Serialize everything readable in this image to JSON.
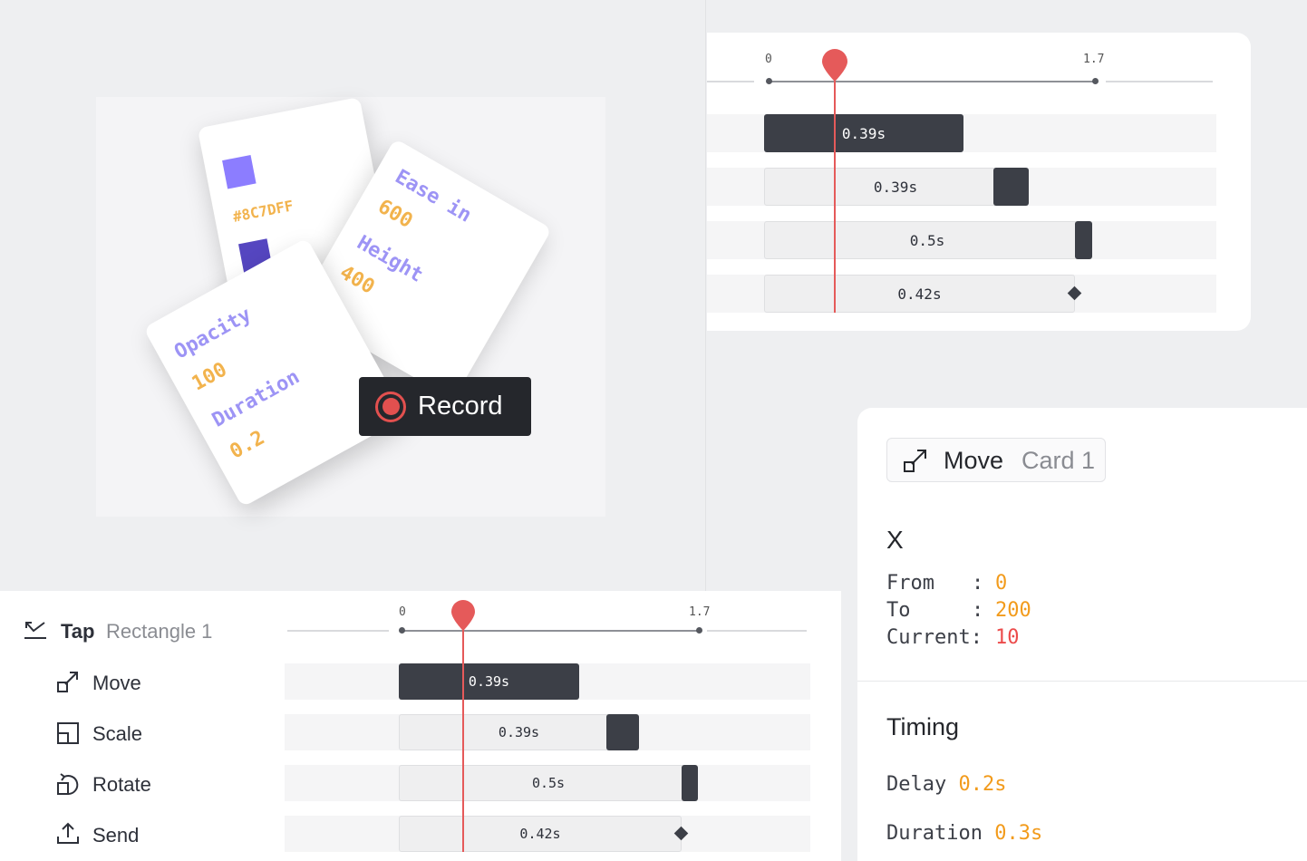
{
  "scene": {
    "card_color": {
      "swatch_light": "#8C7DFF",
      "swatch_dark": "#5546C0",
      "hex_label": "#8C7DFF"
    },
    "card_ease": {
      "ease_label": "Ease in",
      "ease_value": "600",
      "height_label": "Height",
      "height_value": "400"
    },
    "card_opacity": {
      "opacity_label": "Opacity",
      "opacity_value": "100",
      "duration_label": "Duration",
      "duration_value": "0.2"
    },
    "record_button": {
      "label": "Record",
      "accent": "#e2504f"
    }
  },
  "top_timeline": {
    "tick_start": "0",
    "tick_end": "1.7",
    "playhead_color": "#e55a5a",
    "rows": [
      {
        "value": "0.39s",
        "style": "solid"
      },
      {
        "value": "0.39s",
        "style": "track-square-knob"
      },
      {
        "value": "0.5s",
        "style": "track-thin-knob"
      },
      {
        "value": "0.42s",
        "style": "track-diamond"
      }
    ]
  },
  "bottom_panel": {
    "trigger": {
      "icon": "tap-icon",
      "label": "Tap",
      "target": "Rectangle 1"
    },
    "tick_start": "0",
    "tick_end": "1.7",
    "rows": [
      {
        "icon": "move-icon",
        "label": "Move",
        "value": "0.39s"
      },
      {
        "icon": "scale-icon",
        "label": "Scale",
        "value": "0.39s"
      },
      {
        "icon": "rotate-icon",
        "label": "Rotate",
        "value": "0.5s"
      },
      {
        "icon": "send-icon",
        "label": "Send",
        "value": "0.42s"
      }
    ]
  },
  "inspector": {
    "chip": {
      "icon": "move-icon",
      "action": "Move",
      "target": "Card 1"
    },
    "property": "X",
    "from_label": "From",
    "from_sep": ":",
    "from_value": "0",
    "to_label": "To",
    "to_sep": ":",
    "to_value": "200",
    "current_label": "Current:",
    "current_value": "10",
    "timing_title": "Timing",
    "delay_label": "Delay",
    "delay_value": "0.2s",
    "duration_label": "Duration",
    "duration_value": "0.3s",
    "colors": {
      "value_orange": "#f29b1c",
      "value_red": "#ec4b4b"
    }
  }
}
